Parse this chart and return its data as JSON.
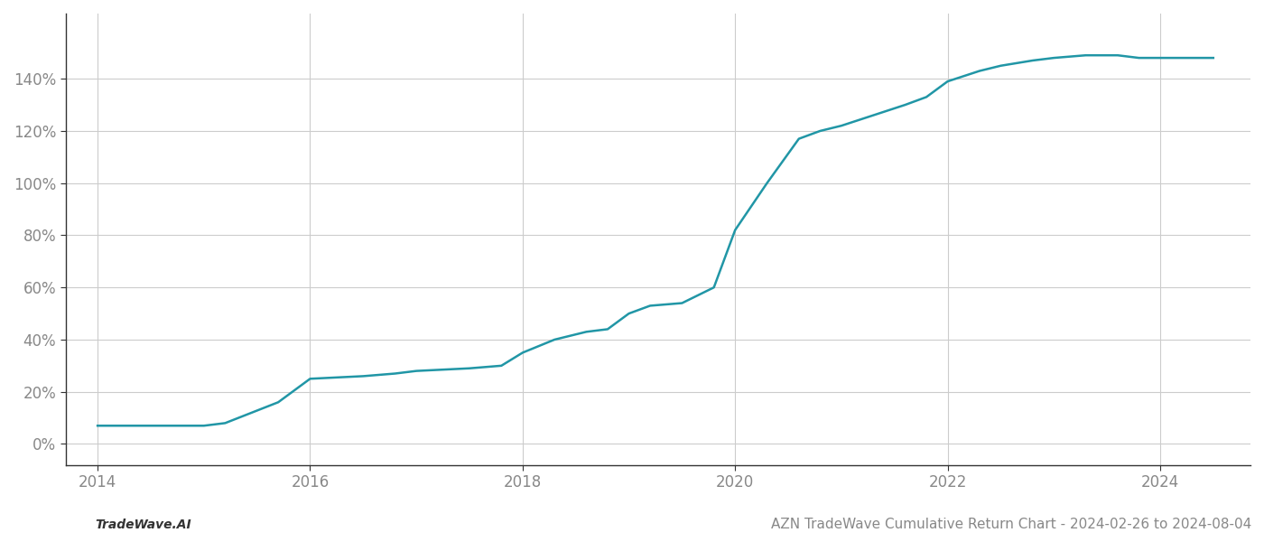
{
  "title": "AZN TradeWave Cumulative Return Chart - 2024-02-26 to 2024-08-04",
  "watermark": "TradeWave.AI",
  "line_color": "#2196a6",
  "line_width": 1.8,
  "background_color": "#ffffff",
  "grid_color": "#cccccc",
  "x_years": [
    2014.0,
    2014.2,
    2015.0,
    2015.2,
    2015.7,
    2016.0,
    2016.5,
    2016.8,
    2017.0,
    2017.5,
    2017.8,
    2018.0,
    2018.3,
    2018.6,
    2018.8,
    2019.0,
    2019.2,
    2019.5,
    2019.8,
    2020.0,
    2020.3,
    2020.6,
    2020.8,
    2021.0,
    2021.3,
    2021.6,
    2021.8,
    2022.0,
    2022.3,
    2022.5,
    2022.8,
    2023.0,
    2023.3,
    2023.6,
    2023.8,
    2024.0,
    2024.5
  ],
  "y_values": [
    7,
    7,
    7,
    8,
    16,
    25,
    26,
    27,
    28,
    29,
    30,
    35,
    40,
    43,
    44,
    50,
    53,
    54,
    60,
    82,
    100,
    117,
    120,
    122,
    126,
    130,
    133,
    139,
    143,
    145,
    147,
    148,
    149,
    149,
    148,
    148,
    148
  ],
  "xlim": [
    2013.7,
    2024.85
  ],
  "ylim": [
    -8,
    165
  ],
  "yticks": [
    0,
    20,
    40,
    60,
    80,
    100,
    120,
    140
  ],
  "xticks": [
    2014,
    2016,
    2018,
    2020,
    2022,
    2024
  ],
  "tick_fontsize": 12,
  "label_fontsize": 10,
  "title_fontsize": 11,
  "spine_color": "#333333",
  "tick_color": "#888888"
}
